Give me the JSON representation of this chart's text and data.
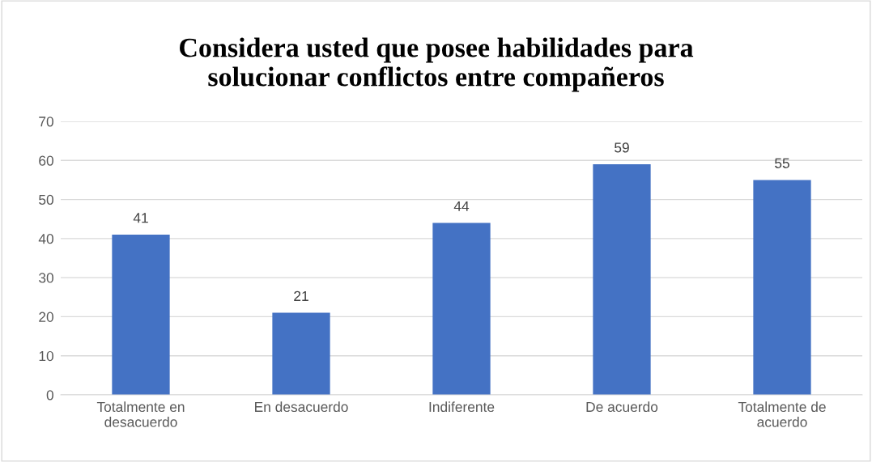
{
  "chart_data": {
    "type": "bar",
    "title": "Considera usted que posee habilidades para solucionar conflictos entre compañeros",
    "categories": [
      "Totalmente en desacuerdo",
      "En desacuerdo",
      "Indiferente",
      "De acuerdo",
      "Totalmente de acuerdo"
    ],
    "values": [
      41,
      21,
      44,
      59,
      55
    ],
    "color": "#4472c4",
    "ylim": [
      0,
      70
    ],
    "yticks": [
      0,
      10,
      20,
      30,
      40,
      50,
      60,
      70
    ],
    "grid": "y",
    "data_labels": true
  }
}
